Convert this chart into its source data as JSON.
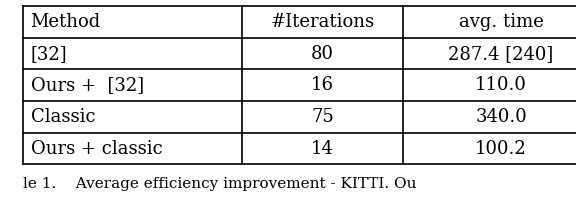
{
  "columns": [
    "Method",
    "#Iterations",
    "avg. time"
  ],
  "rows": [
    [
      "[32]",
      "80",
      "287.4 [240]"
    ],
    [
      "Ours +  [32]",
      "16",
      "110.0"
    ],
    [
      "Classic",
      "75",
      "340.0"
    ],
    [
      "Ours + classic",
      "14",
      "100.2"
    ]
  ],
  "caption": "le 1.    Average efficiency improvement - KITTI. Ou",
  "background_color": "#ffffff",
  "text_color": "#000000",
  "font_size": 13,
  "caption_font_size": 11
}
